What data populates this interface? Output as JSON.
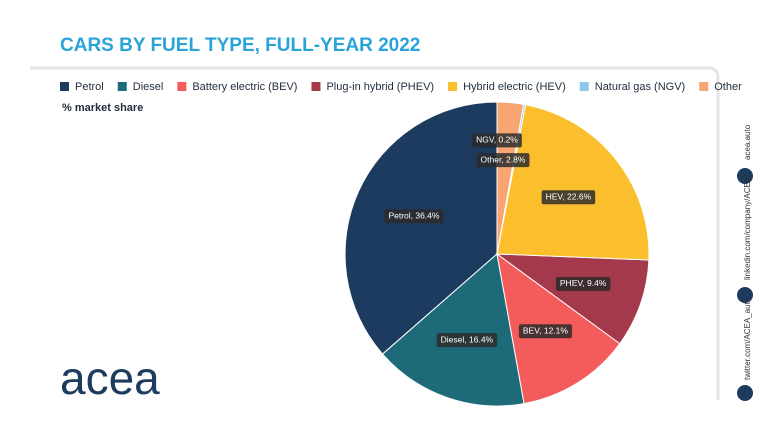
{
  "chart_data": {
    "type": "pie",
    "title": "CARS BY FUEL TYPE, FULL-YEAR 2022",
    "subtitle": "% market share",
    "categories": [
      "Petrol",
      "Diesel",
      "Battery electric (BEV)",
      "Plug-in hybrid (PHEV)",
      "Hybrid electric (HEV)",
      "Natural gas (NGV)",
      "Other"
    ],
    "values": [
      36.4,
      16.4,
      12.1,
      9.4,
      22.6,
      0.2,
      2.8
    ],
    "value_labels": [
      "Petrol, 36.4%",
      "Diesel, 16.4%",
      "BEV, 12.1%",
      "PHEV, 9.4%",
      "HEV, 22.6%",
      "NGV, 0.2%",
      "Other, 2.8%"
    ],
    "colors": [
      "#1c3b5e",
      "#1d6b78",
      "#f45b5b",
      "#a3394b",
      "#fbbf2d",
      "#8fc7ea",
      "#f7a673"
    ],
    "legend": "top"
  },
  "branding": {
    "logo": "acea",
    "website": "acea.auto",
    "linkedin": "linkedin.com/company/ACEA/",
    "twitter": "twitter.com/ACEA_auto"
  }
}
